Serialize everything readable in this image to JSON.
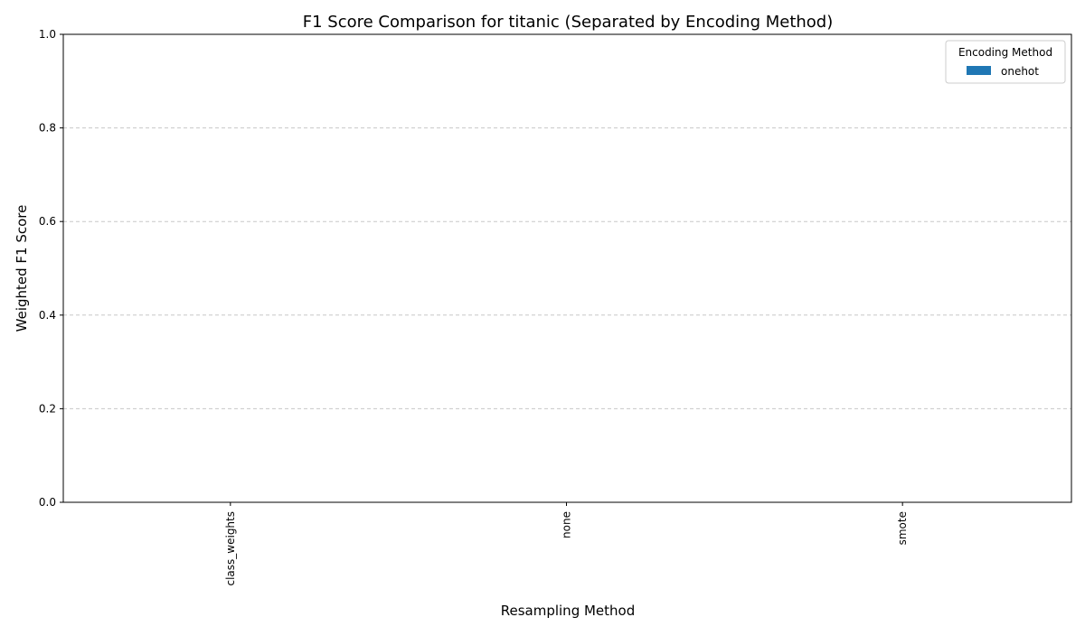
{
  "chart_data": {
    "type": "bar",
    "title": "F1 Score Comparison for titanic (Separated by Encoding Method)",
    "xlabel": "Resampling Method",
    "ylabel": "Weighted F1 Score",
    "categories": [
      "class_weights",
      "none",
      "smote"
    ],
    "series": [
      {
        "name": "onehot",
        "values": [
          null,
          null,
          null
        ]
      }
    ],
    "ylim": [
      0,
      1.0
    ],
    "yticks": [
      "0.0",
      "0.2",
      "0.4",
      "0.6",
      "0.8",
      "1.0"
    ],
    "grid": "horizontal-dashed",
    "legend": {
      "title": "Encoding Method",
      "placement": "top-right",
      "entries": [
        "onehot"
      ]
    },
    "colors": {
      "onehot": "#1f77b4",
      "grid": "#c8c8c8"
    }
  }
}
